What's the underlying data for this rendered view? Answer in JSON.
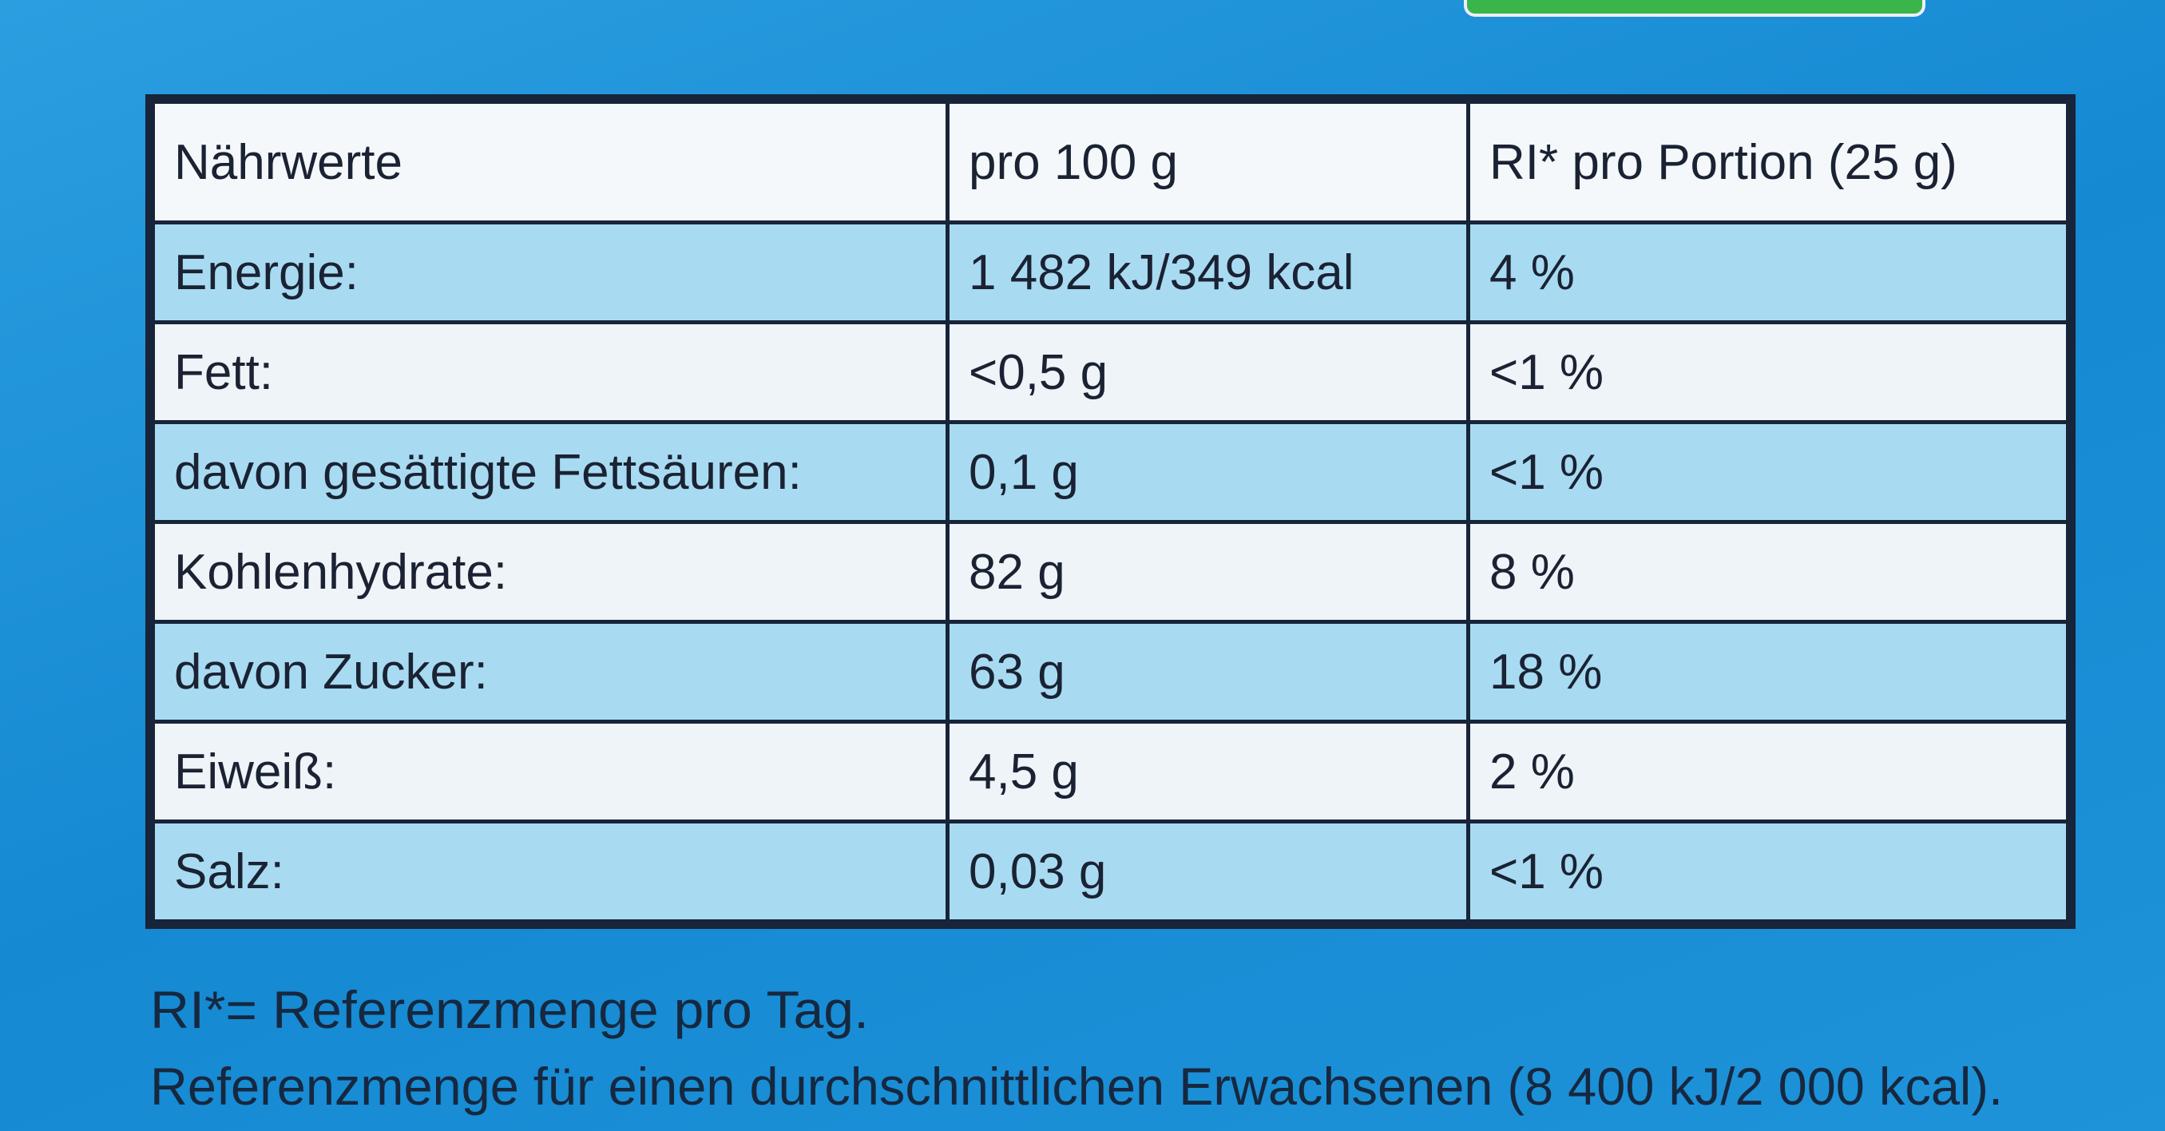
{
  "table": {
    "header": [
      "Nährwerte",
      "pro 100 g",
      "RI* pro Portion (25 g)"
    ],
    "rows": [
      [
        "Energie:",
        "1 482 kJ/349 kcal",
        "4 %"
      ],
      [
        "Fett:",
        "<0,5 g",
        "<1 %"
      ],
      [
        "davon gesättigte Fettsäuren:",
        "0,1 g",
        "<1 %"
      ],
      [
        "Kohlenhydrate:",
        "82 g",
        "8 %"
      ],
      [
        "davon Zucker:",
        "63 g",
        "18 %"
      ],
      [
        "Eiweiß:",
        "4,5 g",
        "2 %"
      ],
      [
        "Salz:",
        "0,03 g",
        "<1 %"
      ]
    ]
  },
  "footnotes": [
    "RI*= Referenzmenge pro Tag.",
    "Referenzmenge für einen durchschnittlichen Erwachsenen (8 400 kJ/2 000 kcal)."
  ]
}
